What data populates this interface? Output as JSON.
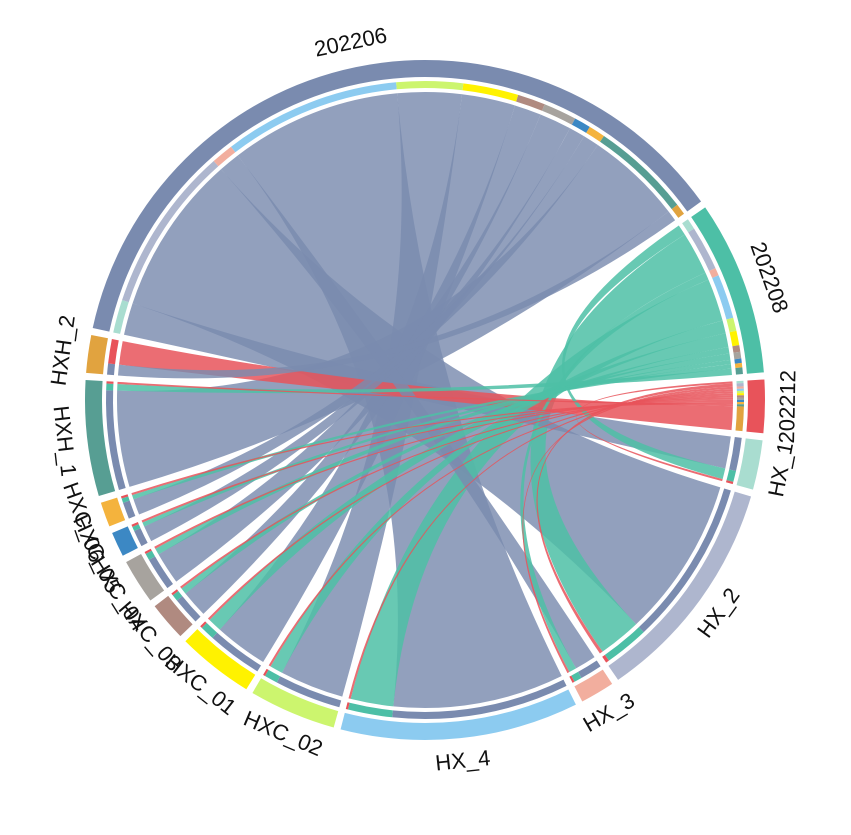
{
  "chart_data": {
    "type": "chord",
    "title": "",
    "sectors": [
      {
        "name": "202206",
        "color": "#7A8BAF",
        "group": "time"
      },
      {
        "name": "202208",
        "color": "#4DBFA6",
        "group": "time"
      },
      {
        "name": "202212",
        "color": "#E8535A",
        "group": "time"
      },
      {
        "name": "HX_1",
        "color": "#A9DDD0",
        "group": "site"
      },
      {
        "name": "HX_2",
        "color": "#AEB6CE",
        "group": "site"
      },
      {
        "name": "HX_3",
        "color": "#F2AE9E",
        "group": "site"
      },
      {
        "name": "HX_4",
        "color": "#8CCBF0",
        "group": "site"
      },
      {
        "name": "HXC_02",
        "color": "#CCF56E",
        "group": "site"
      },
      {
        "name": "HXC_01",
        "color": "#FFF200",
        "group": "site"
      },
      {
        "name": "HXC_03",
        "color": "#B08A80",
        "group": "site"
      },
      {
        "name": "HXC_04",
        "color": "#A7A39E",
        "group": "site"
      },
      {
        "name": "HXC_05",
        "color": "#3C88C4",
        "group": "site"
      },
      {
        "name": "HXC_06",
        "color": "#F4B33D",
        "group": "site"
      },
      {
        "name": "HXH_1",
        "color": "#579E93",
        "group": "site"
      },
      {
        "name": "HXH_2",
        "color": "#E1A33F",
        "group": "site"
      }
    ],
    "links": [
      {
        "source": "202206",
        "target": "HX_1",
        "value": 3
      },
      {
        "source": "202206",
        "target": "HX_2",
        "value": 15
      },
      {
        "source": "202206",
        "target": "HX_3",
        "value": 2
      },
      {
        "source": "202206",
        "target": "HX_4",
        "value": 16
      },
      {
        "source": "202206",
        "target": "HXC_02",
        "value": 6
      },
      {
        "source": "202206",
        "target": "HXC_01",
        "value": 5
      },
      {
        "source": "202206",
        "target": "HXC_03",
        "value": 2.5
      },
      {
        "source": "202206",
        "target": "HXC_04",
        "value": 3
      },
      {
        "source": "202206",
        "target": "HXC_05",
        "value": 1.5
      },
      {
        "source": "202206",
        "target": "HXC_06",
        "value": 1.5
      },
      {
        "source": "202206",
        "target": "HXH_1",
        "value": 9
      },
      {
        "source": "202206",
        "target": "HXH_2",
        "value": 1
      },
      {
        "source": "202208",
        "target": "HX_1",
        "value": 1
      },
      {
        "source": "202208",
        "target": "HX_2",
        "value": 4
      },
      {
        "source": "202208",
        "target": "HX_3",
        "value": 0.7
      },
      {
        "source": "202208",
        "target": "HX_4",
        "value": 4
      },
      {
        "source": "202208",
        "target": "HXC_02",
        "value": 1.2
      },
      {
        "source": "202208",
        "target": "HXC_01",
        "value": 1.3
      },
      {
        "source": "202208",
        "target": "HXC_03",
        "value": 0.6
      },
      {
        "source": "202208",
        "target": "HXC_04",
        "value": 0.6
      },
      {
        "source": "202208",
        "target": "HXC_05",
        "value": 0.4
      },
      {
        "source": "202208",
        "target": "HXC_06",
        "value": 0.4
      },
      {
        "source": "202208",
        "target": "HXH_1",
        "value": 0.6
      },
      {
        "source": "202212",
        "target": "HX_1",
        "value": 0.2
      },
      {
        "source": "202212",
        "target": "HX_2",
        "value": 0.3
      },
      {
        "source": "202212",
        "target": "HX_3",
        "value": 0.2
      },
      {
        "source": "202212",
        "target": "HX_4",
        "value": 0.2
      },
      {
        "source": "202212",
        "target": "HXC_02",
        "value": 0.2
      },
      {
        "source": "202212",
        "target": "HXC_01",
        "value": 0.2
      },
      {
        "source": "202212",
        "target": "HXC_03",
        "value": 0.2
      },
      {
        "source": "202212",
        "target": "HXC_04",
        "value": 0.2
      },
      {
        "source": "202212",
        "target": "HXC_05",
        "value": 0.2
      },
      {
        "source": "202212",
        "target": "HXC_06",
        "value": 0.2
      },
      {
        "source": "202212",
        "target": "HXH_1",
        "value": 0.2
      },
      {
        "source": "202212",
        "target": "HXH_2",
        "value": 2.2
      }
    ]
  }
}
